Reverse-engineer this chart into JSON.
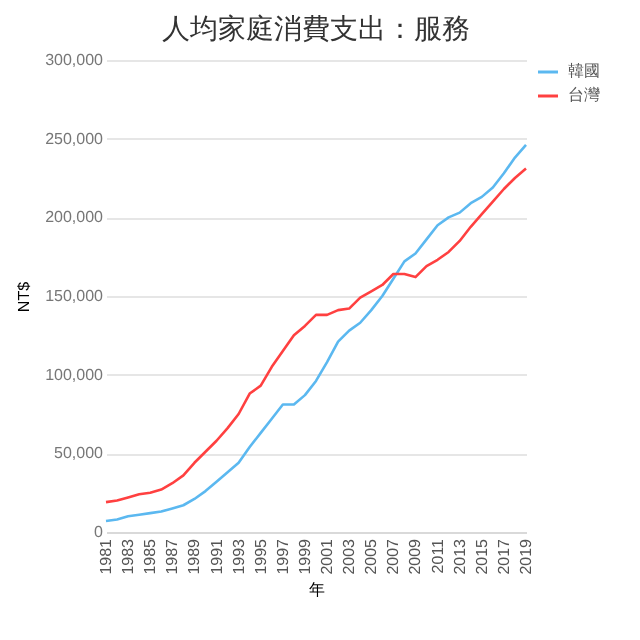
{
  "chart_data": {
    "type": "line",
    "title": "人均家庭消費支出：服務",
    "xlabel": "年",
    "ylabel": "NT$",
    "categories": [
      "1981",
      null,
      "1983",
      null,
      "1985",
      null,
      "1987",
      null,
      "1989",
      null,
      "1991",
      null,
      "1993",
      null,
      "1995",
      null,
      "1997",
      null,
      "1999",
      null,
      "2001",
      null,
      "2003",
      null,
      "2005",
      null,
      "2007",
      null,
      "2009",
      null,
      "2011",
      null,
      "2013",
      null,
      "2015",
      null,
      "2017",
      null,
      "2019"
    ],
    "series": [
      {
        "name": "韓國",
        "color": "#5bb8f0",
        "values": [
          7000,
          8000,
          10000,
          11000,
          12000,
          13000,
          15000,
          17000,
          21000,
          26000,
          32000,
          38000,
          44000,
          54000,
          63000,
          72000,
          81000,
          81000,
          87000,
          96000,
          108000,
          121000,
          128000,
          133000,
          141000,
          150000,
          161000,
          172000,
          177000,
          186000,
          195000,
          200000,
          203000,
          209000,
          213000,
          219000,
          228000,
          238000,
          246000
        ]
      },
      {
        "name": "台灣",
        "color": "#ff4040",
        "values": [
          19000,
          20000,
          22000,
          24000,
          25000,
          27000,
          31000,
          36000,
          44000,
          51000,
          58000,
          66000,
          75000,
          88000,
          93000,
          105000,
          115000,
          125000,
          131000,
          138000,
          138000,
          141000,
          142000,
          149000,
          153000,
          157000,
          164000,
          164000,
          162000,
          169000,
          173000,
          178000,
          185000,
          194000,
          202000,
          210000,
          218000,
          225000,
          231000
        ]
      }
    ],
    "ylim": [
      0,
      300000
    ],
    "yticks": [
      0,
      {
        "value": 50000,
        "label": "50,000"
      },
      {
        "value": 100000,
        "label": "100,000"
      },
      {
        "value": 150000,
        "label": "150,000"
      },
      {
        "value": 200000,
        "label": "200,000"
      },
      {
        "value": 250000,
        "label": "250,000"
      },
      {
        "value": 300000,
        "label": "300,000"
      }
    ],
    "grid": "y",
    "legend": "right"
  }
}
